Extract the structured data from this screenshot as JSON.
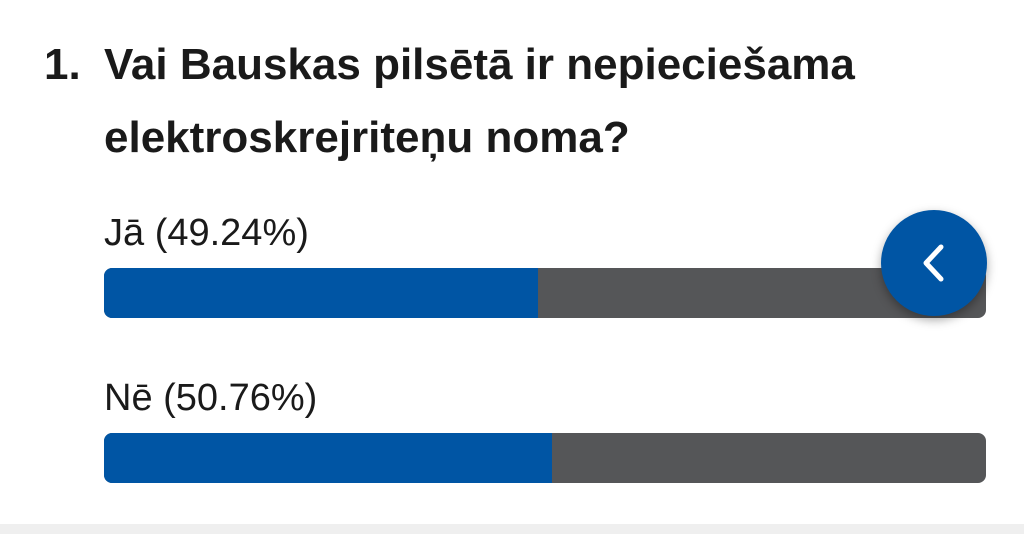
{
  "poll": {
    "number": "1.",
    "question": [
      "Vai Bauskas pilsētā ir nepieciešama",
      "elektroskrejriteņu noma?"
    ],
    "options": [
      {
        "label": "Jā (49.24%)",
        "value": 49.24
      },
      {
        "label": "Nē (50.76%)",
        "value": 50.76
      }
    ]
  }
}
